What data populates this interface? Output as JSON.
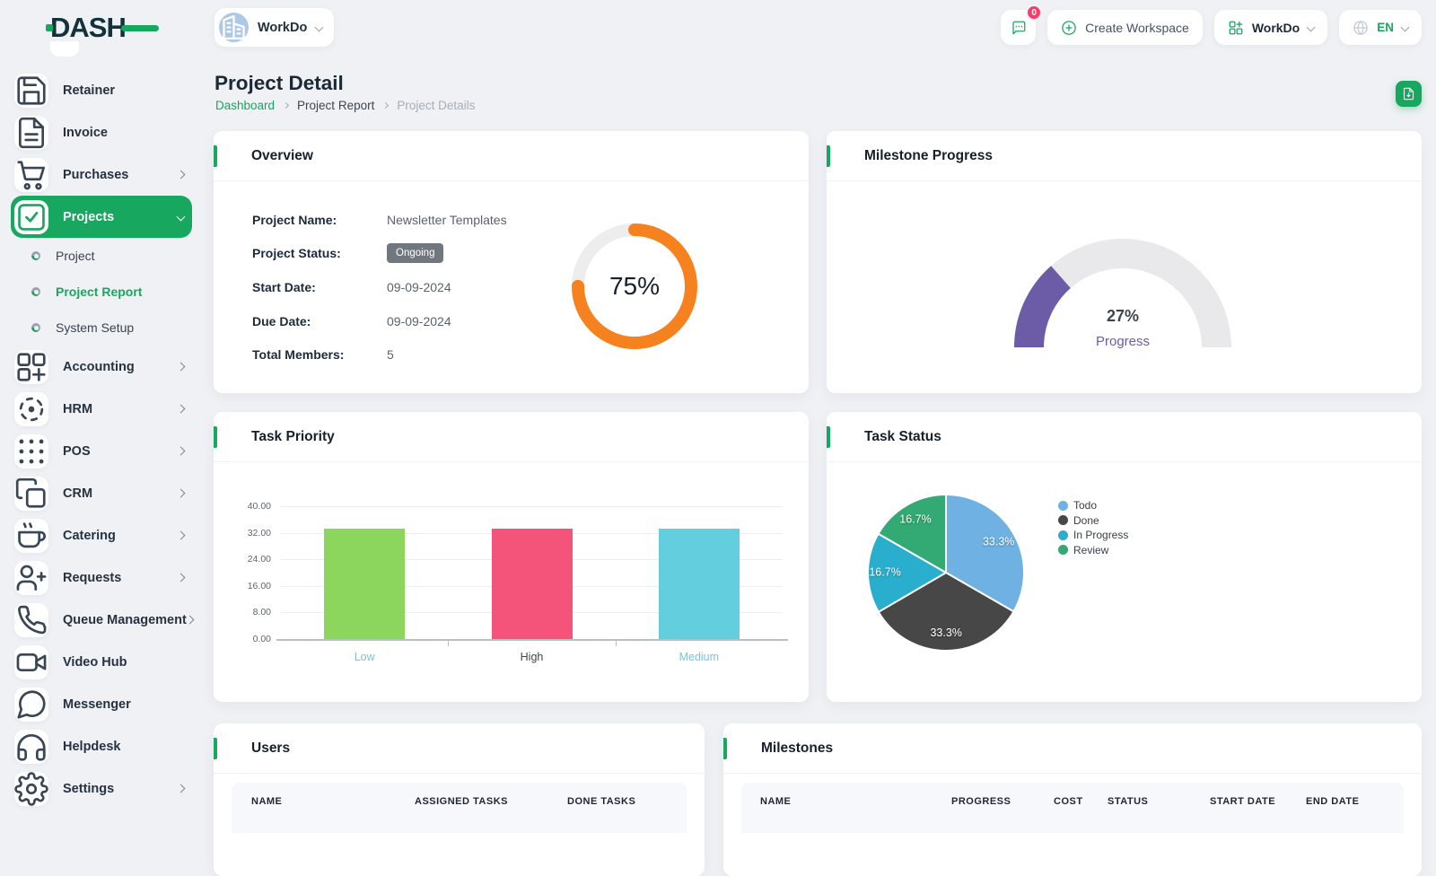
{
  "app": {
    "logo": "DASH"
  },
  "topbar": {
    "workspace_switcher": {
      "name": "WorkDo",
      "icon": "building-icon"
    },
    "messages": {
      "icon": "chat-icon",
      "badge": "0"
    },
    "create_workspace": {
      "label": "Create Workspace",
      "icon": "plus-circle-icon"
    },
    "app_switcher": {
      "label": "WorkDo",
      "icon": "grid-plus-icon"
    },
    "language": {
      "label": "EN",
      "icon": "globe-icon"
    }
  },
  "sidebar": {
    "items": [
      {
        "label": "Retainer",
        "icon": "save-icon",
        "expandable": false,
        "active": false
      },
      {
        "label": "Invoice",
        "icon": "file-text-icon",
        "expandable": false,
        "active": false
      },
      {
        "label": "Purchases",
        "icon": "cart-icon",
        "expandable": true,
        "active": false
      },
      {
        "label": "Projects",
        "icon": "check-square-icon",
        "expandable": true,
        "active": true,
        "expanded": true,
        "children": [
          {
            "label": "Project",
            "active": false
          },
          {
            "label": "Project Report",
            "active": true
          },
          {
            "label": "System Setup",
            "active": false
          }
        ]
      },
      {
        "label": "Accounting",
        "icon": "grid-add-icon",
        "expandable": true,
        "active": false
      },
      {
        "label": "HRM",
        "icon": "crosshair-icon",
        "expandable": true,
        "active": false
      },
      {
        "label": "POS",
        "icon": "dots-grid-icon",
        "expandable": true,
        "active": false
      },
      {
        "label": "CRM",
        "icon": "copy-icon",
        "expandable": true,
        "active": false
      },
      {
        "label": "Catering",
        "icon": "coffee-icon",
        "expandable": true,
        "active": false
      },
      {
        "label": "Requests",
        "icon": "user-plus-icon",
        "expandable": true,
        "active": false
      },
      {
        "label": "Queue Management",
        "icon": "phone-icon",
        "expandable": true,
        "active": false
      },
      {
        "label": "Video Hub",
        "icon": "video-icon",
        "expandable": false,
        "active": false
      },
      {
        "label": "Messenger",
        "icon": "message-icon",
        "expandable": false,
        "active": false
      },
      {
        "label": "Helpdesk",
        "icon": "headphones-icon",
        "expandable": false,
        "active": false
      },
      {
        "label": "Settings",
        "icon": "gear-icon",
        "expandable": true,
        "active": false
      }
    ]
  },
  "page": {
    "title": "Project Detail",
    "breadcrumb": [
      {
        "label": "Dashboard",
        "style": "link"
      },
      {
        "label": "Project Report",
        "style": "mid"
      },
      {
        "label": "Project Details",
        "style": "muted"
      }
    ],
    "export_button_icon": "file-export-icon"
  },
  "overview": {
    "title": "Overview",
    "fields": [
      {
        "label": "Project Name:",
        "value": "Newsletter Templates",
        "badge": false
      },
      {
        "label": "Project Status:",
        "value": "Ongoing",
        "badge": true
      },
      {
        "label": "Start Date:",
        "value": "09-09-2024",
        "badge": false
      },
      {
        "label": "Due Date:",
        "value": "09-09-2024",
        "badge": false
      },
      {
        "label": "Total Members:",
        "value": "5",
        "badge": false
      }
    ],
    "donut": {
      "label": "75%"
    }
  },
  "milestone_progress": {
    "title": "Milestone Progress",
    "value_label": "27%",
    "caption": "Progress"
  },
  "task_priority": {
    "title": "Task Priority"
  },
  "task_status": {
    "title": "Task Status"
  },
  "users": {
    "title": "Users",
    "columns": [
      "NAME",
      "ASSIGNED TASKS",
      "DONE TASKS"
    ]
  },
  "milestones": {
    "title": "Milestones",
    "columns": [
      "NAME",
      "PROGRESS",
      "COST",
      "STATUS",
      "START DATE",
      "END DATE"
    ]
  },
  "chart_data": [
    {
      "id": "task_priority_bar",
      "type": "bar",
      "title": "Task Priority",
      "categories": [
        "Low",
        "High",
        "Medium"
      ],
      "values": [
        33.33,
        33.33,
        33.33
      ],
      "bar_colors": [
        "#8CD65E",
        "#F4537A",
        "#63CEDE"
      ],
      "category_label_colors": [
        "#7FBCEA",
        "#40474F",
        "#70C6E2"
      ],
      "ylim": [
        0,
        40
      ],
      "yticks": [
        "0.00",
        "8.00",
        "16.00",
        "24.00",
        "32.00",
        "40.00"
      ],
      "grid": true,
      "xlabel": "",
      "ylabel": "",
      "legend": "none"
    },
    {
      "id": "task_status_pie",
      "type": "pie",
      "title": "Task Status",
      "labels": [
        "Todo",
        "Done",
        "In Progress",
        "Review"
      ],
      "values": [
        33.3,
        33.3,
        16.7,
        16.7
      ],
      "slice_labels": [
        "33.3%",
        "33.3%",
        "16.7%",
        "16.7%"
      ],
      "colors": [
        "#6FB1E3",
        "#474747",
        "#29AECE",
        "#33A973"
      ],
      "start_at": "top",
      "direction": "clockwise",
      "legend_position": "right"
    },
    {
      "id": "overview_completion_donut",
      "type": "donut",
      "labels": [
        "Complete",
        "Remaining"
      ],
      "values": [
        75,
        25
      ],
      "colors": [
        "#F6821F",
        "#EDEDEE"
      ],
      "center_label": "75%"
    },
    {
      "id": "milestone_gauge",
      "type": "gauge",
      "value": 27,
      "max": 100,
      "value_label": "27%",
      "caption": "Progress",
      "colors": [
        "#6C5CA7",
        "#E9E9EC"
      ]
    }
  ],
  "colors": {
    "primary": "#17A75E",
    "status_badge_bg": "#71777F",
    "page_bg": "#EFF1F5"
  }
}
